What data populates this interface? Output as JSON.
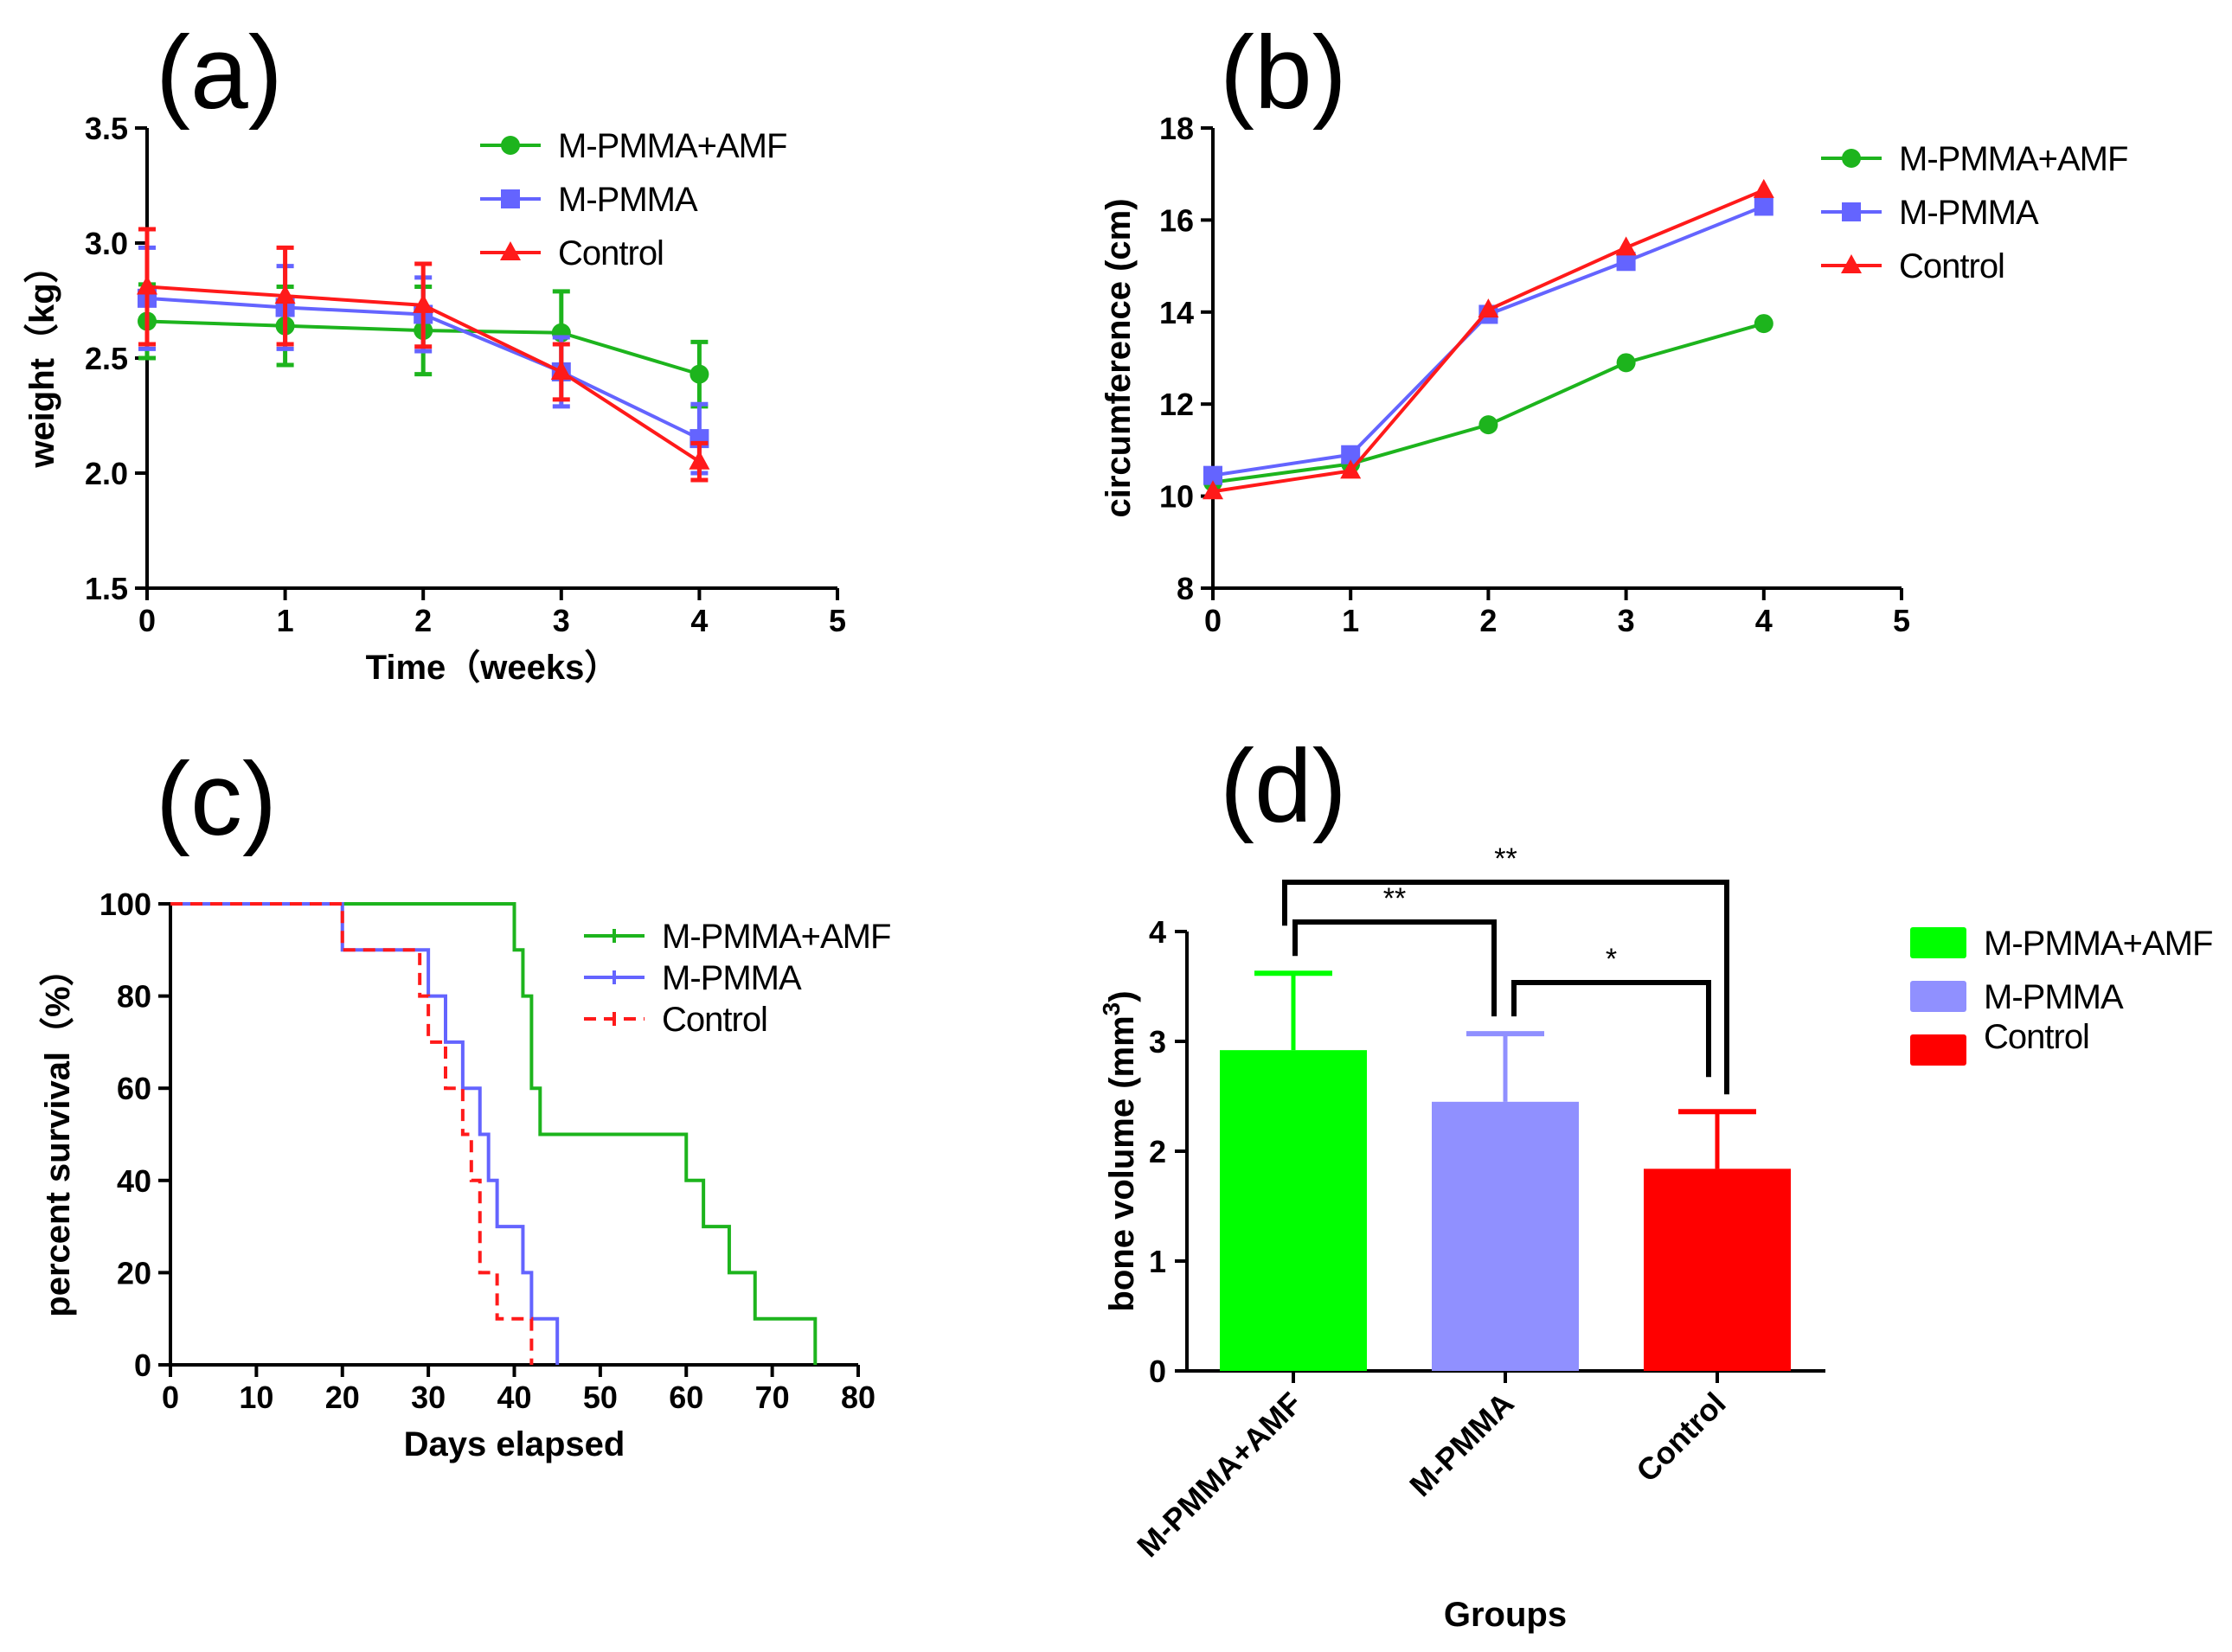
{
  "colors": {
    "green": "#1db41d",
    "blue": "#6464ff",
    "red": "#ff1a1a",
    "bar_green": "#00ff00",
    "bar_blue": "#9090ff",
    "bar_red": "#ff0000"
  },
  "chart_data": [
    {
      "panel": "(a)",
      "type": "line",
      "xlabel": "Time（weeks）",
      "ylabel": "weight（kg）",
      "xlim": [
        0,
        5
      ],
      "ylim": [
        1.5,
        3.5
      ],
      "xticks": [
        "0",
        "1",
        "2",
        "3",
        "4",
        "5"
      ],
      "yticks": [
        "1.5",
        "2.0",
        "2.5",
        "3.0",
        "3.5"
      ],
      "x": [
        0,
        1,
        2,
        3,
        4
      ],
      "series": [
        {
          "name": "M-PMMA+AMF",
          "color": "#1db41d",
          "marker": "circle",
          "values": [
            2.66,
            2.64,
            2.62,
            2.61,
            2.43
          ],
          "errors": [
            0.16,
            0.17,
            0.19,
            0.18,
            0.14
          ]
        },
        {
          "name": "M-PMMA",
          "color": "#6464ff",
          "marker": "square",
          "values": [
            2.76,
            2.72,
            2.69,
            2.44,
            2.15
          ],
          "errors": [
            0.22,
            0.18,
            0.16,
            0.15,
            0.15
          ]
        },
        {
          "name": "Control",
          "color": "#ff1a1a",
          "marker": "triangle",
          "values": [
            2.81,
            2.77,
            2.73,
            2.44,
            2.05
          ],
          "errors": [
            0.25,
            0.21,
            0.18,
            0.12,
            0.08
          ]
        }
      ],
      "legend": [
        "M-PMMA+AMF",
        "M-PMMA",
        "Control"
      ]
    },
    {
      "panel": "(b)",
      "type": "line",
      "xlabel": "",
      "ylabel": "circumference (cm)",
      "xlim": [
        0,
        5
      ],
      "ylim": [
        8,
        18
      ],
      "xticks": [
        "0",
        "1",
        "2",
        "3",
        "4",
        "5"
      ],
      "yticks": [
        "8",
        "10",
        "12",
        "14",
        "16",
        "18"
      ],
      "x": [
        0,
        1,
        2,
        3,
        4
      ],
      "series": [
        {
          "name": "M-PMMA+AMF",
          "color": "#1db41d",
          "marker": "circle",
          "values": [
            10.3,
            10.7,
            11.55,
            12.9,
            13.75
          ]
        },
        {
          "name": "M-PMMA",
          "color": "#6464ff",
          "marker": "square",
          "values": [
            10.45,
            10.9,
            13.95,
            15.1,
            16.3
          ]
        },
        {
          "name": "Control",
          "color": "#ff1a1a",
          "marker": "triangle",
          "values": [
            10.1,
            10.55,
            14.05,
            15.4,
            16.65
          ]
        }
      ],
      "legend": [
        "M-PMMA+AMF",
        "M-PMMA",
        "Control"
      ]
    },
    {
      "panel": "(c)",
      "type": "line",
      "subtype": "survival-step",
      "xlabel": "Days elapsed",
      "ylabel": "percent survival（%）",
      "xlim": [
        0,
        80
      ],
      "ylim": [
        0,
        100
      ],
      "xticks": [
        "0",
        "10",
        "20",
        "30",
        "40",
        "50",
        "60",
        "70",
        "80"
      ],
      "yticks": [
        "0",
        "20",
        "40",
        "60",
        "80",
        "100"
      ],
      "series": [
        {
          "name": "M-PMMA+AMF",
          "color": "#1db41d",
          "dash": false,
          "x": [
            0,
            40,
            41,
            42,
            43,
            60,
            62,
            65,
            68,
            75
          ],
          "values": [
            100,
            90,
            80,
            60,
            50,
            40,
            30,
            20,
            10,
            0
          ]
        },
        {
          "name": "M-PMMA",
          "color": "#6464ff",
          "dash": false,
          "x": [
            0,
            20,
            30,
            32,
            34,
            36,
            37,
            38,
            41,
            42,
            45
          ],
          "values": [
            100,
            90,
            80,
            70,
            60,
            50,
            40,
            30,
            20,
            10,
            0
          ]
        },
        {
          "name": "Control",
          "color": "#ff1a1a",
          "dash": true,
          "x": [
            0,
            20,
            29,
            30,
            32,
            34,
            35,
            36,
            38,
            42
          ],
          "values": [
            100,
            90,
            80,
            70,
            60,
            50,
            40,
            20,
            10,
            0
          ]
        }
      ],
      "legend": [
        "M-PMMA+AMF",
        "M-PMMA",
        "Control"
      ]
    },
    {
      "panel": "(d)",
      "type": "bar",
      "xlabel": "Groups",
      "ylabel": "bone volume (mm",
      "ylabel_sup": "3",
      "ylabel_end": ")",
      "ylim": [
        0,
        4
      ],
      "yticks": [
        "0",
        "1",
        "2",
        "3",
        "4"
      ],
      "categories": [
        "M-PMMA+AMF",
        "M-PMMA",
        "Control"
      ],
      "values": [
        2.92,
        2.45,
        1.84
      ],
      "errors": [
        0.7,
        0.62,
        0.52
      ],
      "colors": [
        "#00ff00",
        "#9090ff",
        "#ff0000"
      ],
      "significance": [
        {
          "from": 0,
          "to": 2,
          "label": "**"
        },
        {
          "from": 0,
          "to": 1,
          "label": "**"
        },
        {
          "from": 1,
          "to": 2,
          "label": "*"
        }
      ],
      "legend": [
        "M-PMMA+AMF",
        "M-PMMA",
        "Control"
      ]
    }
  ]
}
